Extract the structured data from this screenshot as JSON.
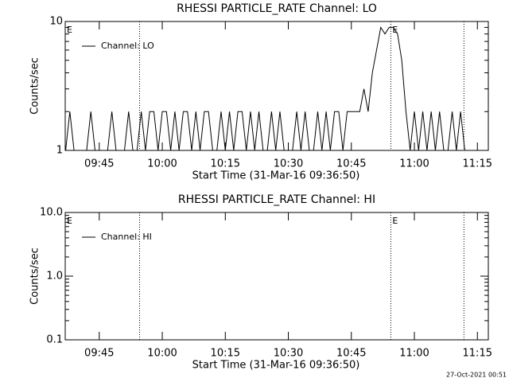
{
  "chart_data": [
    {
      "type": "line",
      "title": "RHESSI PARTICLE_RATE Channel: LO",
      "xlabel": "Start Time (31-Mar-16 09:36:50)",
      "ylabel": "Counts/sec",
      "log_y": true,
      "ylim": [
        1,
        10
      ],
      "yticks": [
        1,
        10
      ],
      "yminor": [
        2,
        3,
        4,
        5,
        6,
        7,
        8,
        9
      ],
      "xlim": [
        36.9,
        137.6
      ],
      "xticks": [
        {
          "value": 45,
          "label": "09:45"
        },
        {
          "value": 60,
          "label": "10:00"
        },
        {
          "value": 75,
          "label": "10:15"
        },
        {
          "value": 90,
          "label": "10:30"
        },
        {
          "value": 105,
          "label": "10:45"
        },
        {
          "value": 120,
          "label": "11:00"
        },
        {
          "value": 135,
          "label": "11:15"
        }
      ],
      "x": [
        37,
        38,
        39,
        40,
        41,
        42,
        43,
        44,
        45,
        46,
        47,
        48,
        49,
        50,
        51,
        52,
        53,
        54,
        55,
        56,
        57,
        58,
        59,
        60,
        61,
        62,
        63,
        64,
        65,
        66,
        67,
        68,
        69,
        70,
        71,
        72,
        73,
        74,
        75,
        76,
        77,
        78,
        79,
        80,
        81,
        82,
        83,
        84,
        85,
        86,
        87,
        88,
        89,
        90,
        91,
        92,
        93,
        94,
        95,
        96,
        97,
        98,
        99,
        100,
        101,
        102,
        103,
        104,
        105,
        106,
        107,
        108,
        109,
        110,
        111,
        112,
        113,
        114,
        115,
        116,
        117,
        118,
        119,
        120,
        121,
        122,
        123,
        124,
        125,
        126,
        127,
        128,
        129,
        130,
        131,
        132,
        133,
        134,
        135,
        136,
        137
      ],
      "series": [
        {
          "name": "Channel: LO",
          "color": "#000000",
          "values": [
            1,
            2,
            1,
            1,
            1,
            1,
            2,
            1,
            1,
            1,
            1,
            2,
            1,
            1,
            1,
            2,
            1,
            1,
            2,
            1,
            2,
            2,
            1,
            2,
            2,
            1,
            2,
            1,
            2,
            2,
            1,
            2,
            1,
            2,
            2,
            1,
            1,
            2,
            1,
            2,
            1,
            2,
            2,
            1,
            2,
            1,
            2,
            1,
            1,
            2,
            1,
            2,
            1,
            1,
            1,
            2,
            1,
            2,
            1,
            1,
            2,
            1,
            2,
            1,
            2,
            2,
            1,
            2,
            2,
            2,
            2,
            3,
            2,
            4,
            6,
            9,
            8,
            9,
            9,
            8,
            5,
            2,
            1,
            2,
            1,
            2,
            1,
            2,
            1,
            2,
            1,
            1,
            2,
            1,
            2,
            1,
            1,
            1,
            1,
            1,
            1
          ]
        }
      ],
      "vlines": [
        54.6,
        114.4,
        131.8
      ],
      "annotations": [
        {
          "text": "E",
          "x": 36.9
        },
        {
          "text": "E",
          "x": 114.4
        }
      ]
    },
    {
      "type": "line",
      "title": "RHESSI PARTICLE_RATE Channel: HI",
      "xlabel": "Start Time (31-Mar-16 09:36:50)",
      "ylabel": "Counts/sec",
      "log_y": true,
      "ylim": [
        0.1,
        10
      ],
      "yticks": [
        0.1,
        {
          "value": 1,
          "label": "1.0"
        },
        {
          "value": 10,
          "label": "10.0"
        }
      ],
      "yminor": [
        0.2,
        0.3,
        0.4,
        0.5,
        0.6,
        0.7,
        0.8,
        0.9,
        2,
        3,
        4,
        5,
        6,
        7,
        8,
        9
      ],
      "xlim": [
        36.9,
        137.6
      ],
      "xticks": [
        {
          "value": 45,
          "label": "09:45"
        },
        {
          "value": 60,
          "label": "10:00"
        },
        {
          "value": 75,
          "label": "10:15"
        },
        {
          "value": 90,
          "label": "10:30"
        },
        {
          "value": 105,
          "label": "10:45"
        },
        {
          "value": 120,
          "label": "11:00"
        },
        {
          "value": 135,
          "label": "11:15"
        }
      ],
      "x": [],
      "series": [
        {
          "name": "Channel: HI",
          "color": "#000000",
          "values": []
        }
      ],
      "vlines": [
        54.6,
        114.4,
        131.8
      ],
      "annotations": [
        {
          "text": "E",
          "x": 36.9
        },
        {
          "text": "E",
          "x": 114.4
        }
      ]
    }
  ],
  "footer": "27-Oct-2021 00:51"
}
